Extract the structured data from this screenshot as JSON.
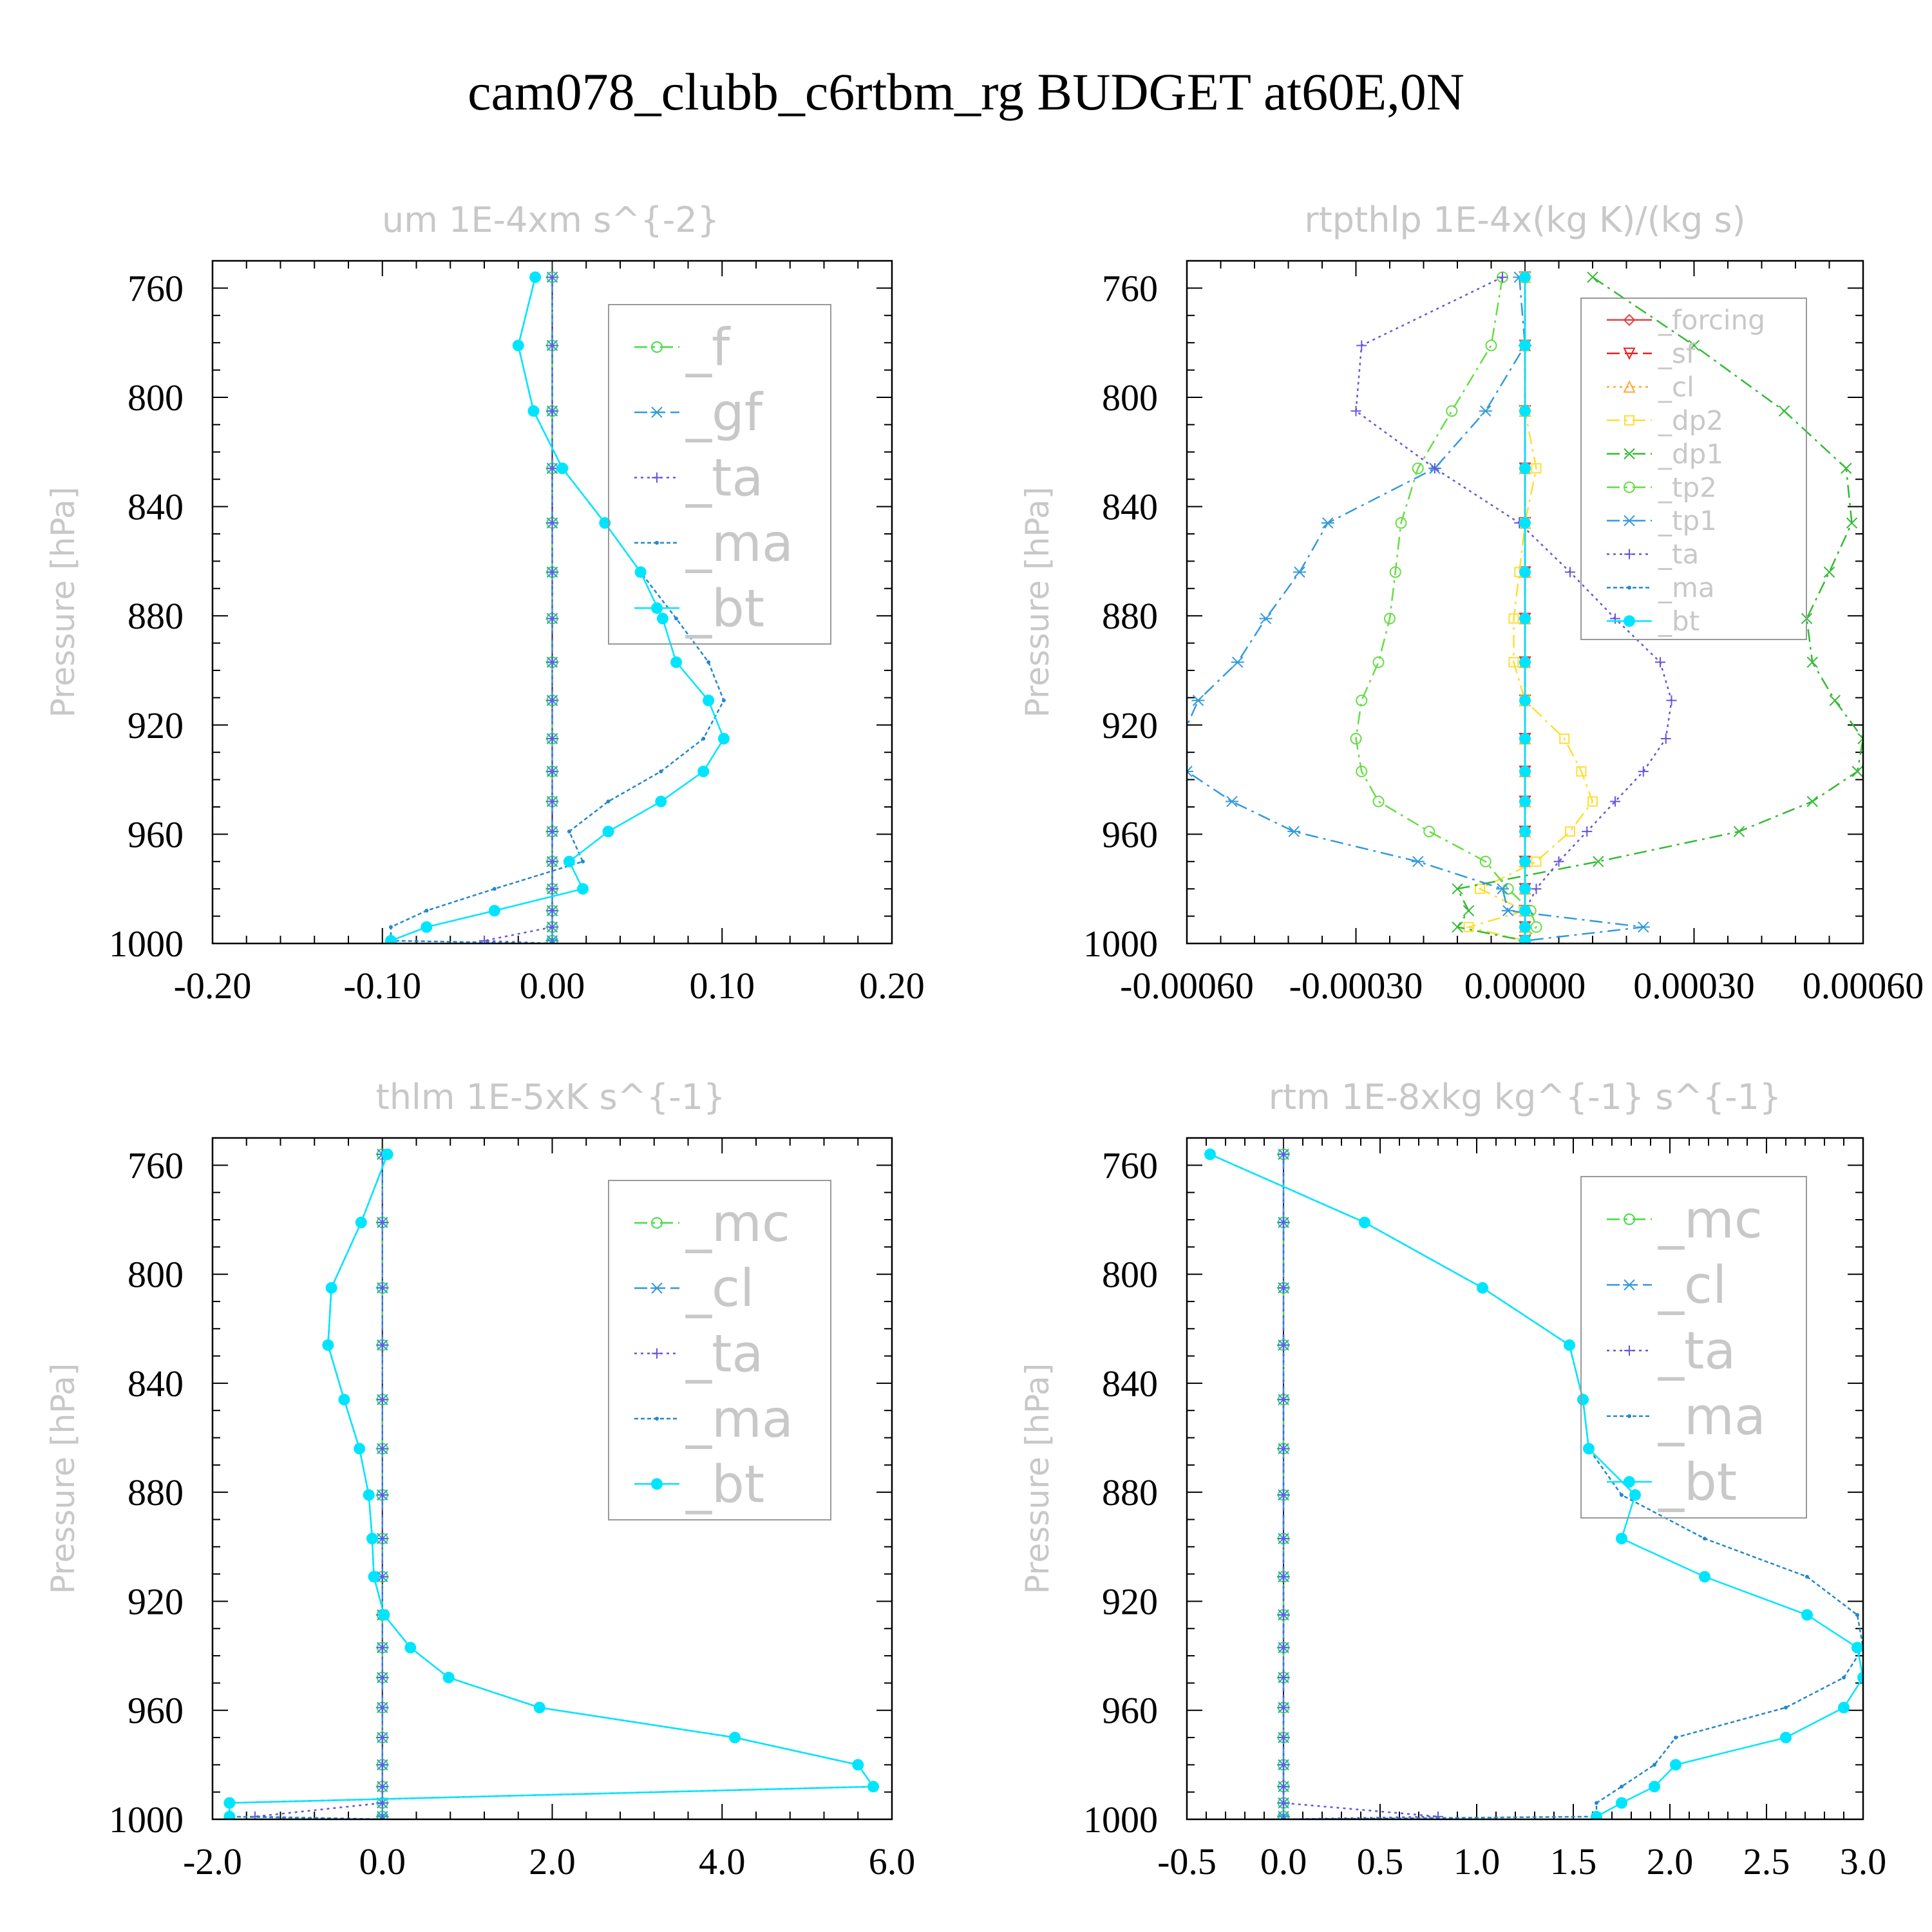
{
  "figure": {
    "title": "cam078_clubb_c6rtbm_rg  BUDGET at60E,0N"
  },
  "colors": {
    "f": "#44dd44",
    "gf": "#3399dd",
    "ta": "#6655dd",
    "ma": "#2288cc",
    "bt": "#00e5ff",
    "forcing": "#dd4444",
    "sf": "#ee2222",
    "cl_or": "#ffaa33",
    "dp2": "#ffdd33",
    "dp1": "#33bb33",
    "tp2": "#66dd44",
    "tp1": "#3399dd",
    "mc": "#44dd44",
    "cl": "#3399dd"
  },
  "chart_data": [
    {
      "type": "line",
      "title": "um  1E-4xm s^{-2}",
      "ylabel": "Pressure [hPa]",
      "xlim": [
        -0.2,
        0.2
      ],
      "ylim": [
        1000,
        750
      ],
      "xticks": [
        -0.2,
        -0.1,
        0.0,
        0.1,
        0.2
      ],
      "xtick_labels": [
        "-0.20",
        "-0.10",
        "0.00",
        "0.10",
        "0.20"
      ],
      "yticks": [
        760,
        800,
        840,
        880,
        920,
        960,
        1000
      ],
      "ytick_labels": [
        "760",
        "800",
        "840",
        "880",
        "920",
        "960",
        "1000"
      ],
      "legend_font": 80,
      "legend_placement": "top-right",
      "levels": [
        756,
        781,
        805,
        826,
        846,
        864,
        881,
        897,
        911,
        925,
        937,
        948,
        959,
        970,
        980,
        988,
        994,
        999,
        1000
      ],
      "series": [
        {
          "name": "_f",
          "color": "f",
          "marker": "circle",
          "dash": "20,8,4,8",
          "values": [
            0,
            0,
            0,
            0,
            0,
            0,
            0,
            0,
            0,
            0,
            0,
            0,
            0,
            0,
            0,
            0,
            0,
            0,
            0
          ]
        },
        {
          "name": "_gf",
          "color": "gf",
          "marker": "star",
          "dash": "20,8",
          "values": [
            0,
            0,
            0,
            0,
            0,
            0,
            0,
            0,
            0,
            0,
            0,
            0,
            0,
            0,
            0,
            0,
            0,
            0,
            0
          ]
        },
        {
          "name": "_ta",
          "color": "ta",
          "marker": "plus",
          "dash": "4,6",
          "values": [
            0,
            0,
            0,
            0,
            0,
            0,
            0,
            0,
            0,
            0,
            0,
            0,
            0,
            0,
            0,
            0,
            0,
            -0.04,
            0
          ]
        },
        {
          "name": "_ma",
          "color": "ma",
          "marker": "dot",
          "dash": "6,4",
          "values": [
            -0.01,
            -0.02,
            -0.011,
            0.006,
            0.031,
            0.052,
            0.073,
            0.092,
            0.101,
            0.089,
            0.064,
            0.033,
            0.01,
            0.018,
            -0.034,
            -0.074,
            -0.095,
            -0.095,
            0
          ]
        },
        {
          "name": "_bt",
          "color": "bt",
          "marker": "bigdot",
          "dash": "",
          "values": [
            -0.01,
            -0.02,
            -0.011,
            0.006,
            0.031,
            0.052,
            0.065,
            0.073,
            0.092,
            0.101,
            0.089,
            0.064,
            0.033,
            0.01,
            0.018,
            -0.034,
            -0.074,
            -0.095,
            -0.095
          ]
        }
      ]
    },
    {
      "type": "line",
      "title": "rtpthlp  1E-4x(kg K)/(kg s)",
      "ylabel": "Pressure [hPa]",
      "xlim": [
        -0.0006,
        0.0006
      ],
      "ylim": [
        1000,
        750
      ],
      "xticks": [
        -0.0006,
        -0.0003,
        0.0,
        0.0003,
        0.0006
      ],
      "xtick_labels": [
        "-0.00060",
        "-0.00030",
        "0.00000",
        "0.00030",
        "0.00060"
      ],
      "yticks": [
        760,
        800,
        840,
        880,
        920,
        960,
        1000
      ],
      "ytick_labels": [
        "760",
        "800",
        "840",
        "880",
        "920",
        "960",
        "1000"
      ],
      "legend_font": 42,
      "legend_placement": "top-right",
      "levels": [
        756,
        781,
        805,
        826,
        846,
        864,
        881,
        897,
        911,
        925,
        937,
        948,
        959,
        970,
        980,
        988,
        994,
        999
      ],
      "series": [
        {
          "name": "_forcing",
          "color": "forcing",
          "marker": "diamond",
          "dash": "",
          "values": [
            0,
            0,
            0,
            0,
            0,
            0,
            0,
            0,
            0,
            0,
            0,
            0,
            0,
            0,
            0,
            0,
            0,
            0
          ]
        },
        {
          "name": "_sf",
          "color": "sf",
          "marker": "tridown",
          "dash": "20,8",
          "values": [
            0,
            0,
            0,
            0,
            0,
            0,
            0,
            0,
            0,
            0,
            0,
            0,
            0,
            0,
            0,
            0,
            0,
            0
          ]
        },
        {
          "name": "_cl",
          "color": "cl_or",
          "marker": "triup",
          "dash": "4,6",
          "values": [
            0,
            0,
            0,
            0,
            0,
            0,
            0,
            0,
            0,
            0,
            0,
            0,
            0,
            0,
            0,
            0,
            0,
            0
          ]
        },
        {
          "name": "_dp2",
          "color": "dp2",
          "marker": "square",
          "dash": "20,8,4,8",
          "values": [
            0,
            0,
            0,
            2e-05,
            0,
            -1e-05,
            -2e-05,
            -2e-05,
            0,
            7e-05,
            0.0001,
            0.00012,
            8e-05,
            2e-05,
            -8e-05,
            0,
            -0.0001,
            0
          ]
        },
        {
          "name": "_dp1",
          "color": "dp1",
          "marker": "cross",
          "dash": "20,8,4,8",
          "values": [
            0.00012,
            0.0003,
            0.00046,
            0.00057,
            0.00058,
            0.00054,
            0.0005,
            0.00051,
            0.00055,
            0.0006,
            0.00059,
            0.00051,
            0.00038,
            0.00013,
            -0.00012,
            -0.0001,
            -0.00012,
            0
          ]
        },
        {
          "name": "_tp2",
          "color": "tp2",
          "marker": "circle",
          "dash": "20,8,4,8",
          "values": [
            -4e-05,
            -6e-05,
            -0.00013,
            -0.00019,
            -0.00022,
            -0.00023,
            -0.00024,
            -0.00026,
            -0.00029,
            -0.0003,
            -0.00029,
            -0.00026,
            -0.00017,
            -7e-05,
            -3e-05,
            1e-05,
            2e-05,
            0
          ]
        },
        {
          "name": "_tp1",
          "color": "tp1",
          "marker": "star",
          "dash": "20,8,4,8",
          "values": [
            -1e-05,
            0,
            -7e-05,
            -0.00016,
            -0.00035,
            -0.0004,
            -0.00046,
            -0.00051,
            -0.00058,
            -0.00061,
            -0.0006,
            -0.00052,
            -0.00041,
            -0.00019,
            -4e-05,
            -3e-05,
            0.00021,
            0
          ]
        },
        {
          "name": "_ta",
          "color": "ta",
          "marker": "plus",
          "dash": "4,6",
          "values": [
            -4e-05,
            -0.00029,
            -0.0003,
            -0.00016,
            -1e-05,
            8e-05,
            0.00016,
            0.00024,
            0.00026,
            0.00025,
            0.00021,
            0.00016,
            0.00011,
            6e-05,
            2e-05,
            0,
            0,
            0
          ]
        },
        {
          "name": "_ma",
          "color": "ma",
          "marker": "dot",
          "dash": "6,4",
          "values": [
            0,
            0,
            0,
            0,
            0,
            0,
            0,
            0,
            0,
            0,
            0,
            0,
            0,
            0,
            0,
            0,
            0,
            0
          ]
        },
        {
          "name": "_bt",
          "color": "bt",
          "marker": "bigdot",
          "dash": "",
          "values": [
            0,
            0,
            0,
            0,
            0,
            0,
            0,
            0,
            0,
            0,
            0,
            0,
            0,
            0,
            0,
            0,
            0,
            0
          ]
        }
      ]
    },
    {
      "type": "line",
      "title": "thlm  1E-5xK s^{-1}",
      "ylabel": "Pressure [hPa]",
      "xlim": [
        -2.0,
        6.0
      ],
      "ylim": [
        1000,
        750
      ],
      "xticks": [
        -2.0,
        0.0,
        2.0,
        4.0,
        6.0
      ],
      "xtick_labels": [
        "-2.0",
        "0.0",
        "2.0",
        "4.0",
        "6.0"
      ],
      "yticks": [
        760,
        800,
        840,
        880,
        920,
        960,
        1000
      ],
      "ytick_labels": [
        "760",
        "800",
        "840",
        "880",
        "920",
        "960",
        "1000"
      ],
      "legend_font": 80,
      "legend_placement": "top-right",
      "levels": [
        756,
        781,
        805,
        826,
        846,
        864,
        881,
        897,
        911,
        925,
        937,
        948,
        959,
        970,
        980,
        988,
        994,
        999,
        1000
      ],
      "series": [
        {
          "name": "_mc",
          "color": "mc",
          "marker": "circle",
          "dash": "20,8,4,8",
          "values": [
            0,
            0,
            0,
            0,
            0,
            0,
            0,
            0,
            0,
            0,
            0,
            0,
            0,
            0,
            0,
            0,
            0,
            0,
            0
          ]
        },
        {
          "name": "_cl",
          "color": "cl",
          "marker": "star",
          "dash": "20,8",
          "values": [
            0,
            0,
            0,
            0,
            0,
            0,
            0,
            0,
            0,
            0,
            0,
            0,
            0,
            0,
            0,
            0,
            0,
            0,
            0
          ]
        },
        {
          "name": "_ta",
          "color": "ta",
          "marker": "plus",
          "dash": "4,6",
          "values": [
            0,
            0,
            0,
            0,
            0,
            0,
            0,
            0,
            0,
            0,
            0,
            0,
            0,
            0,
            0,
            0,
            0,
            -1.5,
            0
          ]
        },
        {
          "name": "_ma",
          "color": "ma",
          "marker": "dot",
          "dash": "6,4",
          "values": [
            0.06,
            -0.25,
            -0.6,
            -0.64,
            -0.45,
            -0.27,
            -0.16,
            -0.12,
            -0.1,
            0.02,
            0.33,
            0.78,
            1.85,
            4.15,
            5.6,
            5.78,
            -1.8,
            -1.8,
            0
          ]
        },
        {
          "name": "_bt",
          "color": "bt",
          "marker": "bigdot",
          "dash": "",
          "values": [
            0.06,
            -0.25,
            -0.6,
            -0.64,
            -0.45,
            -0.27,
            -0.16,
            -0.12,
            -0.1,
            0.02,
            0.33,
            0.78,
            1.85,
            4.15,
            5.6,
            5.78,
            -1.8,
            -1.8,
            -1.8
          ]
        }
      ]
    },
    {
      "type": "line",
      "title": "rtm  1E-8xkg kg^{-1} s^{-1}",
      "ylabel": "Pressure [hPa]",
      "xlim": [
        -0.5,
        3.0
      ],
      "ylim": [
        1000,
        750
      ],
      "xticks": [
        -0.5,
        0.0,
        0.5,
        1.0,
        1.5,
        2.0,
        2.5,
        3.0
      ],
      "xtick_labels": [
        "-0.5",
        "0.0",
        "0.5",
        "1.0",
        "1.5",
        "2.0",
        "2.5",
        "3.0"
      ],
      "yticks": [
        760,
        800,
        840,
        880,
        920,
        960,
        1000
      ],
      "ytick_labels": [
        "760",
        "800",
        "840",
        "880",
        "920",
        "960",
        "1000"
      ],
      "legend_font": 80,
      "legend_placement": "top-right",
      "levels": [
        756,
        781,
        805,
        826,
        846,
        864,
        881,
        897,
        911,
        925,
        937,
        948,
        959,
        970,
        980,
        988,
        994,
        999,
        1000
      ],
      "series": [
        {
          "name": "_mc",
          "color": "mc",
          "marker": "circle",
          "dash": "20,8,4,8",
          "values": [
            0,
            0,
            0,
            0,
            0,
            0,
            0,
            0,
            0,
            0,
            0,
            0,
            0,
            0,
            0,
            0,
            0,
            0,
            0
          ]
        },
        {
          "name": "_cl",
          "color": "cl",
          "marker": "star",
          "dash": "20,8",
          "values": [
            0,
            0,
            0,
            0,
            0,
            0,
            0,
            0,
            0,
            0,
            0,
            0,
            0,
            0,
            0,
            0,
            0,
            0,
            0
          ]
        },
        {
          "name": "_ta",
          "color": "ta",
          "marker": "plus",
          "dash": "4,6",
          "values": [
            0,
            0,
            0,
            0,
            0,
            0,
            0,
            0,
            0,
            0,
            0,
            0,
            0,
            0,
            0,
            0,
            0,
            0.8,
            0
          ]
        },
        {
          "name": "_ma",
          "color": "ma",
          "marker": "dot",
          "dash": "6,4",
          "values": [
            -0.38,
            0.42,
            1.03,
            1.48,
            1.55,
            1.58,
            1.75,
            2.18,
            2.71,
            2.97,
            3.0,
            2.9,
            2.6,
            2.03,
            1.92,
            1.75,
            1.62,
            1.62,
            0
          ]
        },
        {
          "name": "_bt",
          "color": "bt",
          "marker": "bigdot",
          "dash": "",
          "values": [
            -0.38,
            0.42,
            1.03,
            1.48,
            1.55,
            1.58,
            1.82,
            1.75,
            2.18,
            2.71,
            2.97,
            3.0,
            2.9,
            2.6,
            2.03,
            1.92,
            1.75,
            1.62,
            1.62
          ]
        }
      ]
    }
  ]
}
